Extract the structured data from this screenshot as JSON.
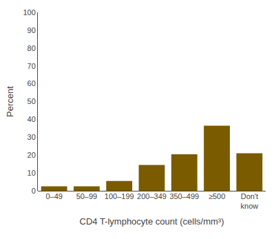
{
  "chart_data": {
    "type": "bar",
    "categories": [
      "0–49",
      "50–99",
      "100–199",
      "200–349",
      "350–499",
      "≥500",
      "Don't\nknow"
    ],
    "values": [
      2.5,
      2.5,
      5.5,
      14.5,
      20.5,
      36.5,
      21.0
    ],
    "color": "#7B5B00",
    "xlabel": "CD4 T-lymphocyte count (cells/mm³)",
    "ylabel": "Percent",
    "ylim": [
      0,
      100
    ],
    "yticks": [
      0,
      10,
      20,
      30,
      40,
      50,
      60,
      70,
      80,
      90,
      100
    ],
    "grid": false
  }
}
